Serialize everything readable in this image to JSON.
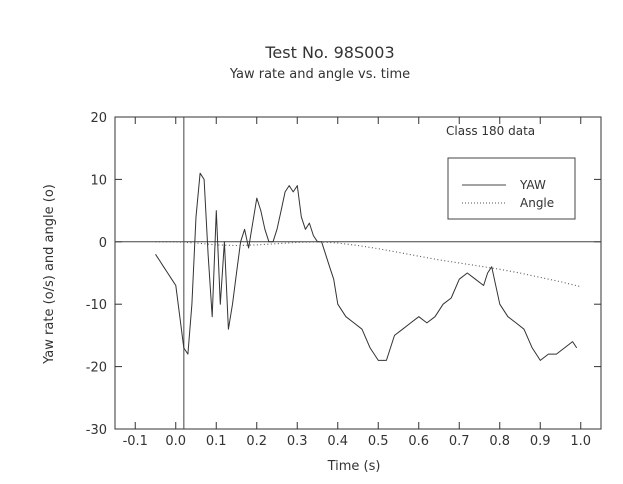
{
  "chart_data": {
    "type": "line",
    "title": "Test No. 98S003",
    "subtitle": "Yaw rate and angle vs. time",
    "xlabel": "Time (s)",
    "ylabel": "Yaw rate (o/s) and angle (o)",
    "xlim": [
      -0.15,
      1.05
    ],
    "ylim": [
      -30,
      20
    ],
    "x_ticks": [
      -0.1,
      0.0,
      0.1,
      0.2,
      0.3,
      0.4,
      0.5,
      0.6,
      0.7,
      0.8,
      0.9,
      1.0
    ],
    "x_tick_labels": [
      "-0.1",
      "0.0",
      "0.1",
      "0.2",
      "0.3",
      "0.4",
      "0.5",
      "0.6",
      "0.7",
      "0.8",
      "0.9",
      "1.0"
    ],
    "y_ticks": [
      -30,
      -20,
      -10,
      0,
      10,
      20
    ],
    "y_tick_labels": [
      "-30",
      "-20",
      "-10",
      "0",
      "10",
      "20"
    ],
    "grid": false,
    "annotation": "Class 180 data",
    "legend_position": "top-right",
    "series": [
      {
        "name": "YAW",
        "style": "solid",
        "x": [
          -0.05,
          -0.04,
          -0.03,
          -0.02,
          -0.01,
          0.0,
          0.01,
          0.02,
          0.03,
          0.04,
          0.05,
          0.06,
          0.07,
          0.08,
          0.09,
          0.1,
          0.11,
          0.12,
          0.13,
          0.14,
          0.15,
          0.16,
          0.17,
          0.18,
          0.19,
          0.2,
          0.21,
          0.22,
          0.23,
          0.24,
          0.25,
          0.26,
          0.27,
          0.28,
          0.29,
          0.3,
          0.31,
          0.32,
          0.33,
          0.34,
          0.35,
          0.36,
          0.37,
          0.38,
          0.39,
          0.4,
          0.42,
          0.44,
          0.46,
          0.48,
          0.5,
          0.52,
          0.54,
          0.56,
          0.58,
          0.6,
          0.62,
          0.64,
          0.66,
          0.68,
          0.7,
          0.72,
          0.74,
          0.76,
          0.77,
          0.78,
          0.8,
          0.82,
          0.84,
          0.86,
          0.88,
          0.9,
          0.92,
          0.94,
          0.96,
          0.98,
          0.99
        ],
        "y": [
          -2,
          -3,
          -4,
          -5,
          -6,
          -7,
          -12,
          -17,
          -18,
          -10,
          4,
          11,
          10,
          -2,
          -12,
          5,
          -10,
          0,
          -14,
          -10,
          -5,
          0,
          2,
          -1,
          3,
          7,
          5,
          2,
          0,
          0,
          2,
          5,
          8,
          9,
          8,
          9,
          4,
          2,
          3,
          1,
          0,
          0,
          -2,
          -4,
          -6,
          -10,
          -12,
          -13,
          -14,
          -17,
          -19,
          -19,
          -15,
          -14,
          -13,
          -12,
          -13,
          -12,
          -10,
          -9,
          -6,
          -5,
          -6,
          -7,
          -5,
          -4,
          -10,
          -12,
          -13,
          -14,
          -17,
          -19,
          -18,
          -18,
          -17,
          -16,
          -17
        ]
      },
      {
        "name": "Angle",
        "style": "dotted",
        "x": [
          -0.05,
          0.0,
          0.05,
          0.1,
          0.15,
          0.2,
          0.25,
          0.3,
          0.35,
          0.4,
          0.45,
          0.5,
          0.55,
          0.6,
          0.65,
          0.7,
          0.75,
          0.8,
          0.85,
          0.9,
          0.95,
          1.0
        ],
        "y": [
          0.0,
          0.0,
          -0.2,
          -0.5,
          -0.6,
          -0.5,
          -0.3,
          -0.1,
          0.0,
          -0.2,
          -0.6,
          -1.1,
          -1.7,
          -2.3,
          -2.9,
          -3.4,
          -3.9,
          -4.4,
          -5.0,
          -5.7,
          -6.4,
          -7.2
        ]
      }
    ]
  }
}
